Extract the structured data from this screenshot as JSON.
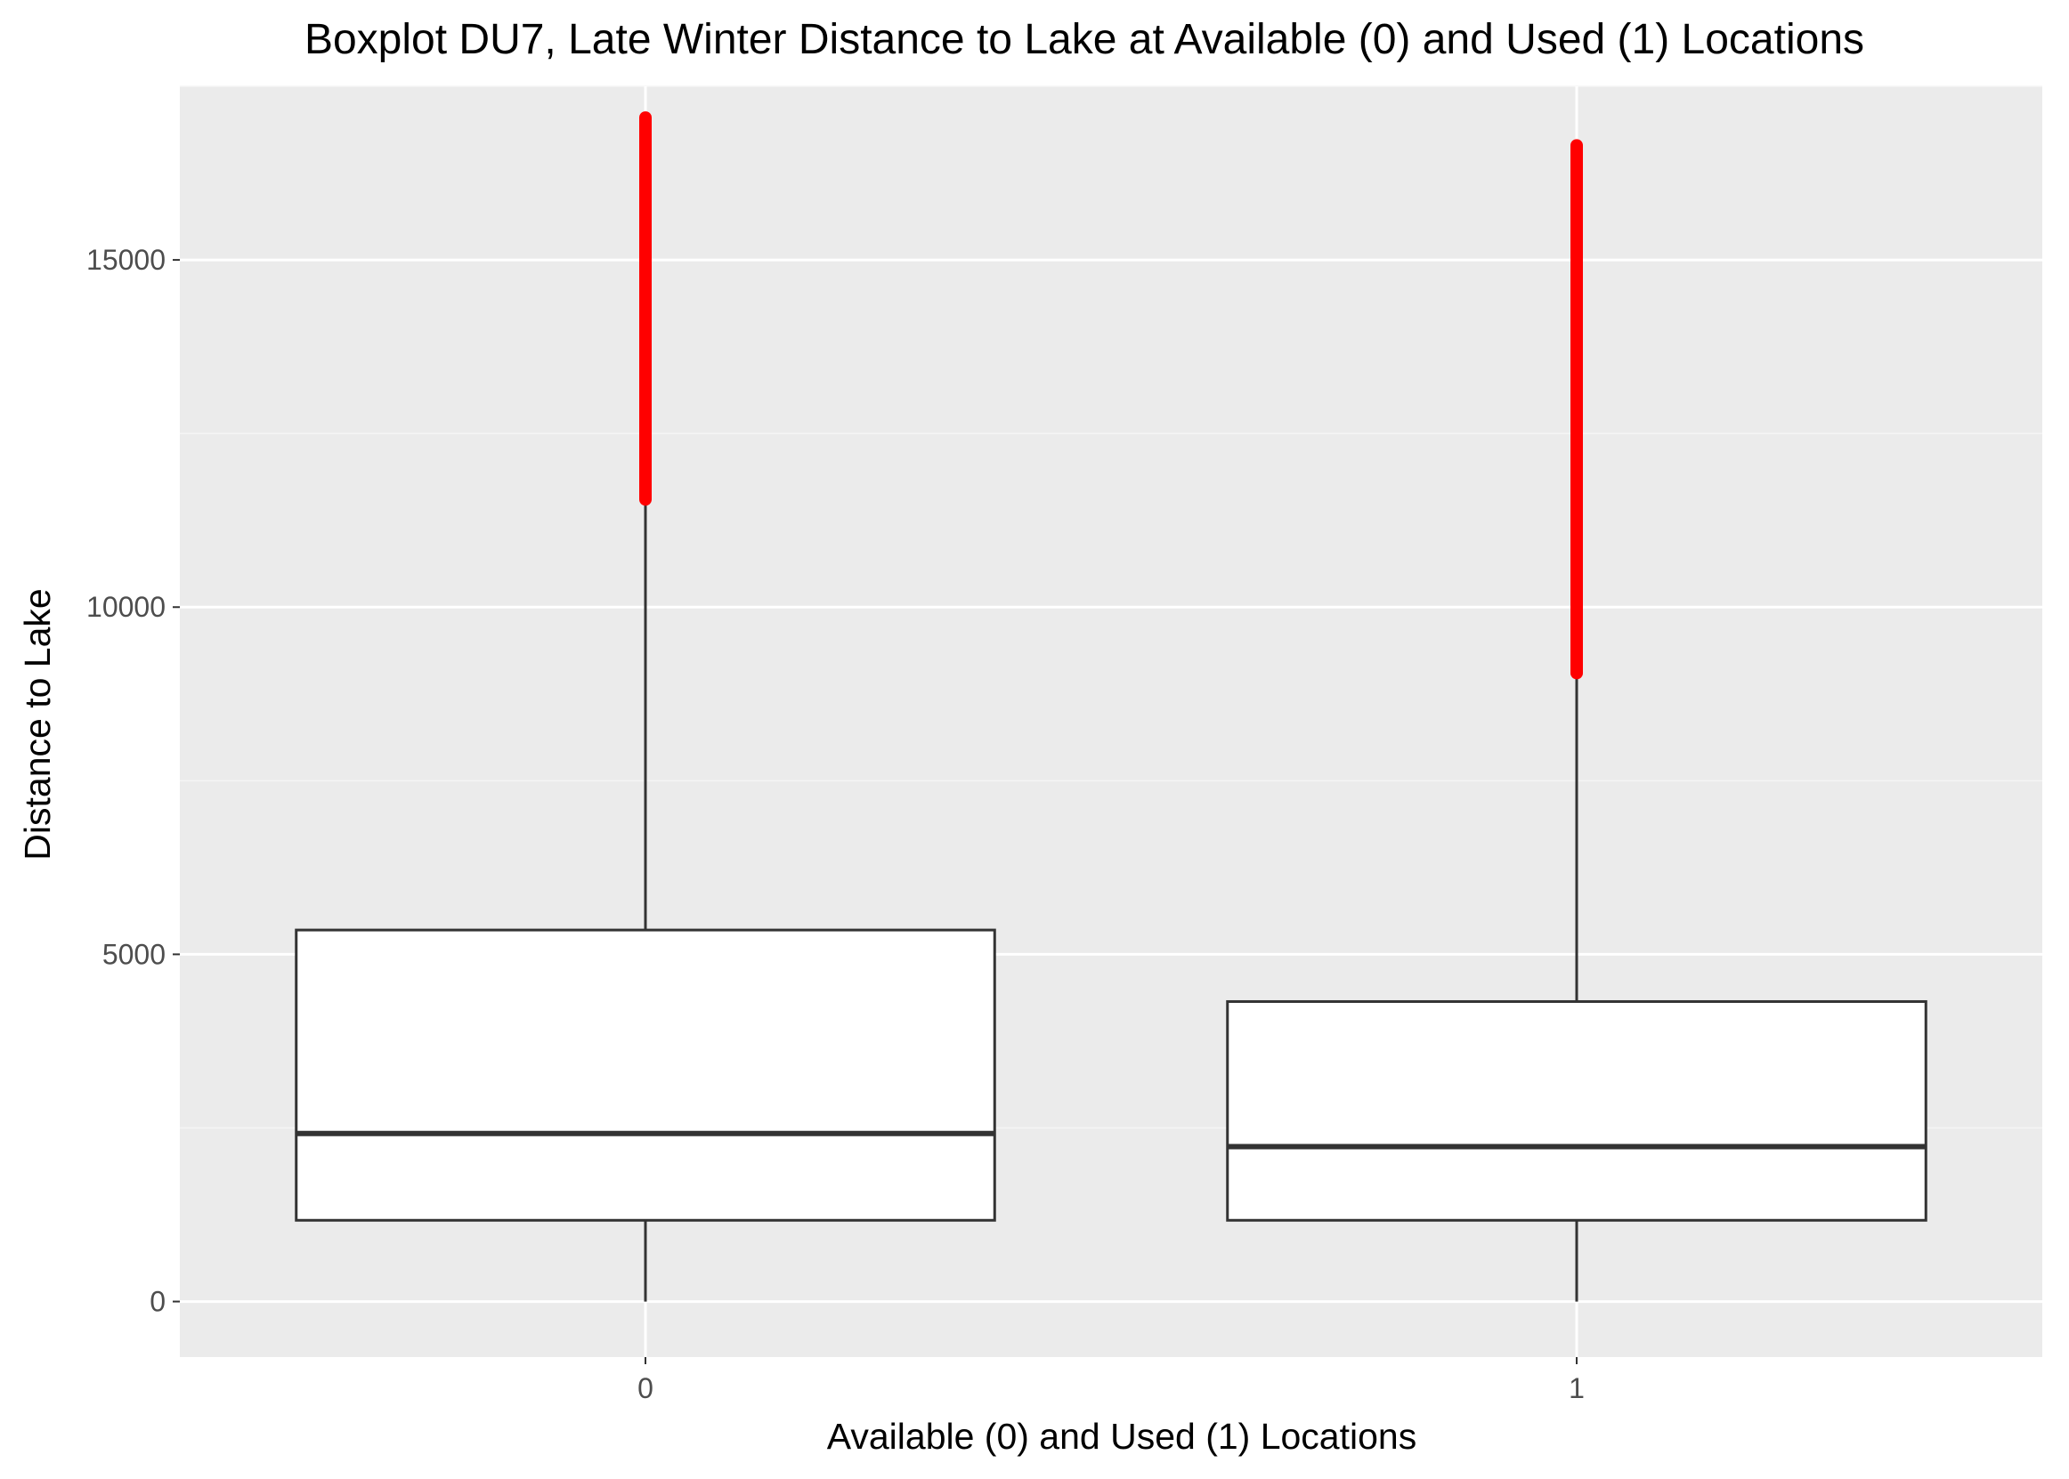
{
  "chart_data": {
    "type": "boxplot",
    "title": "Boxplot DU7, Late Winter Distance to Lake at Available (0) and Used (1) Locations",
    "xlabel": "Available (0) and Used (1) Locations",
    "ylabel": "Distance to Lake",
    "categories": [
      "0",
      "1"
    ],
    "ylim": [
      -800,
      17500
    ],
    "yticks": [
      0,
      5000,
      10000,
      15000
    ],
    "ytick_labels": [
      "0",
      "5000",
      "10000",
      "15000"
    ],
    "grid": true,
    "legend": "none",
    "boxes": [
      {
        "category": "0",
        "whisker_low": 0,
        "q1": 1170,
        "median": 2420,
        "q3": 5350,
        "whisker_high": 11550,
        "outliers_range": [
          11550,
          17050
        ]
      },
      {
        "category": "1",
        "whisker_low": 0,
        "q1": 1170,
        "median": 2230,
        "q3": 4320,
        "whisker_high": 9050,
        "outliers_range": [
          9050,
          16650
        ]
      }
    ],
    "colors": {
      "panel_background": "#ebebeb",
      "grid_major": "#ffffff",
      "grid_minor": "#f5f5f5",
      "box_fill": "#ffffff",
      "box_stroke": "#333333",
      "outlier": "#ff0000",
      "tick_mark": "#333333"
    }
  }
}
